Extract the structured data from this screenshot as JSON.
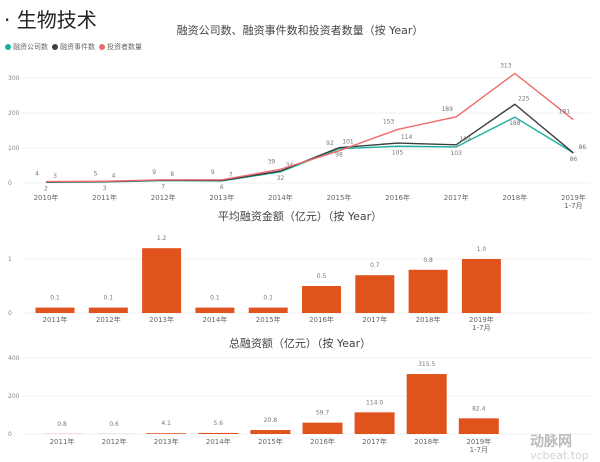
{
  "heading": "· 生物技术",
  "colors": {
    "companies": "#1aaf9f",
    "events": "#3a3f42",
    "investors": "#ef6b6b",
    "bar": "#e0531c",
    "grid": "#ececec"
  },
  "chart_data": [
    {
      "type": "line",
      "title": "融资公司数、融资事件数和投资者数量（按 Year）",
      "categories": [
        "2010年",
        "2011年",
        "2012年",
        "2013年",
        "2014年",
        "2015年",
        "2016年",
        "2017年",
        "2018年",
        "2019年 1-7月"
      ],
      "series": [
        {
          "name": "融资公司数",
          "values": [
            2,
            3,
            7,
            6,
            32,
            98,
            105,
            103,
            188,
            86
          ]
        },
        {
          "name": "融资事件数",
          "values": [
            3,
            4,
            8,
            7,
            34,
            101,
            114,
            109,
            225,
            86
          ]
        },
        {
          "name": "投资者数量",
          "values": [
            4,
            5,
            9,
            9,
            39,
            92,
            153,
            189,
            313,
            181
          ]
        }
      ],
      "yticks": [
        0,
        100,
        200,
        300
      ],
      "ylim": [
        0,
        300
      ],
      "grid": true,
      "legend": "top-left"
    },
    {
      "type": "bar",
      "title": "平均融资金额（亿元）（按 Year）",
      "categories": [
        "2011年",
        "2012年",
        "2013年",
        "2014年",
        "2015年",
        "2016年",
        "2017年",
        "2018年",
        "2019年 1-7月"
      ],
      "values": [
        0.1,
        0.1,
        1.2,
        0.1,
        0.1,
        0.5,
        0.7,
        0.8,
        1.0
      ],
      "labels": [
        "0.1",
        "0.1",
        "1.2",
        "0.1",
        "0.1",
        "0.5",
        "0.7",
        "0.8",
        "1.0"
      ],
      "yticks": [
        0,
        1
      ],
      "grid": true
    },
    {
      "type": "bar",
      "title": "总融资额（亿元）（按 Year）",
      "categories": [
        "2011年",
        "2012年",
        "2013年",
        "2014年",
        "2015年",
        "2016年",
        "2017年",
        "2018年",
        "2019年 1-7月"
      ],
      "values": [
        0.8,
        0.6,
        4.1,
        5.6,
        20.8,
        59.7,
        114.0,
        315.5,
        82.4
      ],
      "labels": [
        "0.8",
        "0.6",
        "4.1",
        "5.6",
        "20.8",
        "59.7",
        "114.0",
        "315.5",
        "82.4"
      ],
      "yticks": [
        0,
        200,
        400
      ],
      "ylim": [
        0,
        400
      ],
      "grid": true
    }
  ],
  "watermark": {
    "name": "动脉网",
    "url": "vcbeat.top"
  }
}
